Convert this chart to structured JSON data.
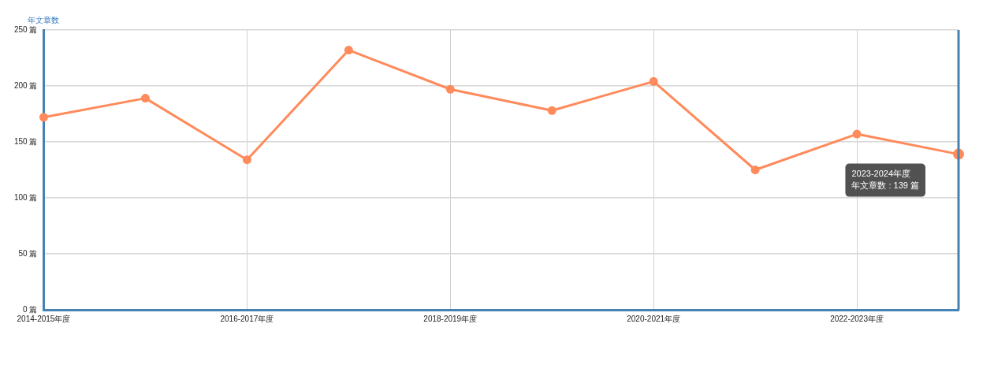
{
  "chart_data": {
    "type": "line",
    "ylabel": "年文章数",
    "categories": [
      "2014-2015年度",
      null,
      "2016-2017年度",
      null,
      "2018-2019年度",
      null,
      "2020-2021年度",
      null,
      "2022-2023年度",
      null
    ],
    "series": [
      {
        "color": "#ff8a5b",
        "values": [
          172,
          189,
          134,
          232,
          197,
          178,
          204,
          125,
          157,
          139
        ]
      }
    ],
    "ylim": [
      0,
      250
    ],
    "yticks": [
      {
        "value": 0,
        "label": "0 篇"
      },
      {
        "value": 50,
        "label": "50 篇"
      },
      {
        "value": 100,
        "label": "100 篇"
      },
      {
        "value": 150,
        "label": "150 篇"
      },
      {
        "value": 200,
        "label": "200 篇"
      },
      {
        "value": 250,
        "label": "250 篇"
      }
    ],
    "grid": true,
    "legend": false,
    "marker": "circle",
    "line_style": "solid",
    "annotations": [
      "2023-2024年度",
      "年文章数 : 139 篇"
    ]
  }
}
